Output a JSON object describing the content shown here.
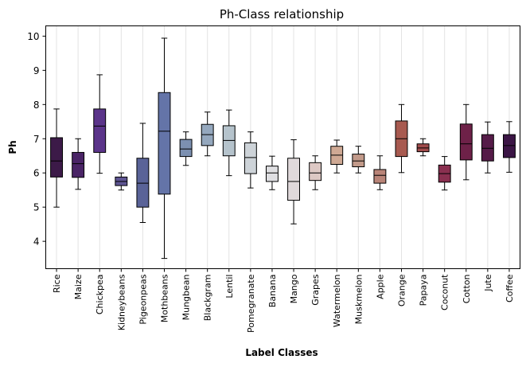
{
  "chart_data": {
    "type": "box",
    "title": "Ph-Class relationship",
    "xlabel": "Label Classes",
    "ylabel": "Ph",
    "ylim": [
      3.2,
      10.3
    ],
    "yticks": [
      4,
      5,
      6,
      7,
      8,
      9,
      10
    ],
    "grid": "vertical",
    "categories": [
      "Rice",
      "Maize",
      "Chickpea",
      "Kidneybeans",
      "Pigeonpeas",
      "Mothbeans",
      "Mungbean",
      "Blackgram",
      "Lentil",
      "Pomegranate",
      "Banana",
      "Mango",
      "Grapes",
      "Watermelon",
      "Muskmelon",
      "Apple",
      "Orange",
      "Papaya",
      "Coconut",
      "Cotton",
      "Jute",
      "Coffee"
    ],
    "colors": [
      "#3c1a48",
      "#4a2466",
      "#5b348a",
      "#5e5592",
      "#5a6398",
      "#6474a8",
      "#7c90b1",
      "#95a8be",
      "#b5c3cc",
      "#cdd3d8",
      "#dfdfe2",
      "#e0d9db",
      "#ddc8c4",
      "#cfa994",
      "#c29a8a",
      "#b98478",
      "#a85a50",
      "#a04b4b",
      "#8a3050",
      "#6e2148",
      "#551b48",
      "#3b1545"
    ],
    "stats": [
      {
        "min": 5.0,
        "q1": 5.88,
        "median": 6.35,
        "q3": 7.03,
        "max": 7.87
      },
      {
        "min": 5.52,
        "q1": 5.87,
        "median": 6.27,
        "q3": 6.6,
        "max": 7.0
      },
      {
        "min": 5.99,
        "q1": 6.6,
        "median": 7.37,
        "q3": 7.87,
        "max": 8.87
      },
      {
        "min": 5.5,
        "q1": 5.63,
        "median": 5.75,
        "q3": 5.88,
        "max": 6.0
      },
      {
        "min": 4.55,
        "q1": 5.0,
        "median": 5.7,
        "q3": 6.43,
        "max": 7.45
      },
      {
        "min": 3.5,
        "q1": 5.38,
        "median": 7.22,
        "q3": 8.35,
        "max": 9.94
      },
      {
        "min": 6.22,
        "q1": 6.48,
        "median": 6.7,
        "q3": 6.98,
        "max": 7.2
      },
      {
        "min": 6.5,
        "q1": 6.8,
        "median": 7.12,
        "q3": 7.42,
        "max": 7.78
      },
      {
        "min": 5.92,
        "q1": 6.5,
        "median": 6.95,
        "q3": 7.38,
        "max": 7.84
      },
      {
        "min": 5.56,
        "q1": 5.98,
        "median": 6.45,
        "q3": 6.88,
        "max": 7.2
      },
      {
        "min": 5.51,
        "q1": 5.75,
        "median": 6.0,
        "q3": 6.2,
        "max": 6.49
      },
      {
        "min": 4.51,
        "q1": 5.2,
        "median": 5.75,
        "q3": 6.43,
        "max": 6.97
      },
      {
        "min": 5.51,
        "q1": 5.78,
        "median": 6.0,
        "q3": 6.3,
        "max": 6.5
      },
      {
        "min": 6.0,
        "q1": 6.25,
        "median": 6.52,
        "q3": 6.78,
        "max": 6.96
      },
      {
        "min": 6.0,
        "q1": 6.18,
        "median": 6.35,
        "q3": 6.55,
        "max": 6.78
      },
      {
        "min": 5.51,
        "q1": 5.7,
        "median": 5.93,
        "q3": 6.1,
        "max": 6.5
      },
      {
        "min": 6.01,
        "q1": 6.48,
        "median": 7.0,
        "q3": 7.52,
        "max": 8.0
      },
      {
        "min": 6.5,
        "q1": 6.62,
        "median": 6.73,
        "q3": 6.85,
        "max": 7.0
      },
      {
        "min": 5.5,
        "q1": 5.73,
        "median": 5.98,
        "q3": 6.23,
        "max": 6.48
      },
      {
        "min": 5.8,
        "q1": 6.38,
        "median": 6.85,
        "q3": 7.43,
        "max": 8.0
      },
      {
        "min": 6.0,
        "q1": 6.35,
        "median": 6.72,
        "q3": 7.12,
        "max": 7.49
      },
      {
        "min": 6.02,
        "q1": 6.45,
        "median": 6.8,
        "q3": 7.12,
        "max": 7.5
      }
    ]
  }
}
